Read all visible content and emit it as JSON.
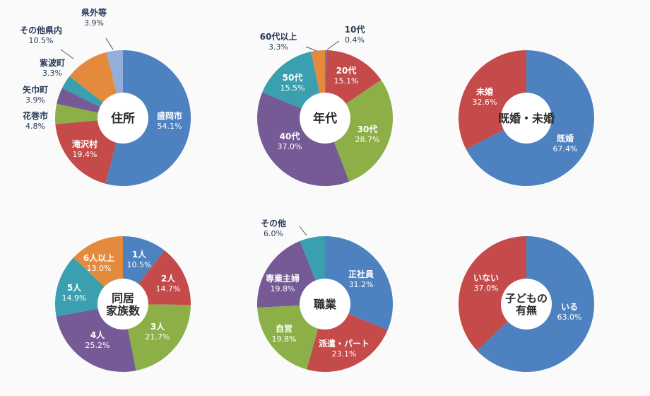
{
  "colors": {
    "blue": "#4d81c0",
    "red": "#c54a4a",
    "green": "#8daf48",
    "purple": "#755a96",
    "teal": "#3a9fae",
    "orange": "#e48a3c",
    "lightblue": "#93aedb",
    "center": "#ffffff",
    "outside_text": "#2a3a5a",
    "inside_text": "#ffffff"
  },
  "chart_data": [
    {
      "type": "pie",
      "title": "住所",
      "slices": [
        {
          "label": "盛岡市",
          "pct_text": "54.1%",
          "value": 54.1,
          "color": "blue"
        },
        {
          "label": "滝沢村",
          "pct_text": "19.4%",
          "value": 19.4,
          "color": "red"
        },
        {
          "label": "花巻市",
          "pct_text": "4.8%",
          "value": 4.8,
          "color": "green"
        },
        {
          "label": "矢巾町",
          "pct_text": "3.9%",
          "value": 3.9,
          "color": "purple"
        },
        {
          "label": "紫波町",
          "pct_text": "3.3%",
          "value": 3.3,
          "color": "teal"
        },
        {
          "label": "その他県内",
          "pct_text": "10.5%",
          "value": 10.5,
          "color": "orange"
        },
        {
          "label": "県外等",
          "pct_text": "3.9%",
          "value": 3.9,
          "color": "lightblue"
        }
      ]
    },
    {
      "type": "pie",
      "title": "年代",
      "slices": [
        {
          "label": "10代",
          "pct_text": "0.4%",
          "value": 0.4,
          "color": "blue"
        },
        {
          "label": "20代",
          "pct_text": "15.1%",
          "value": 15.1,
          "color": "red"
        },
        {
          "label": "30代",
          "pct_text": "28.7%",
          "value": 28.7,
          "color": "green"
        },
        {
          "label": "40代",
          "pct_text": "37.0%",
          "value": 37.0,
          "color": "purple"
        },
        {
          "label": "50代",
          "pct_text": "15.5%",
          "value": 15.5,
          "color": "teal"
        },
        {
          "label": "60代以上",
          "pct_text": "3.3%",
          "value": 3.3,
          "color": "orange"
        }
      ]
    },
    {
      "type": "pie",
      "title": "既婚・未婚",
      "slices": [
        {
          "label": "既婚",
          "pct_text": "67.4%",
          "value": 67.4,
          "color": "blue"
        },
        {
          "label": "未婚",
          "pct_text": "32.6%",
          "value": 32.6,
          "color": "red"
        }
      ]
    },
    {
      "type": "pie",
      "title": "同居\n家族数",
      "slices": [
        {
          "label": "1人",
          "pct_text": "10.5%",
          "value": 10.5,
          "color": "blue"
        },
        {
          "label": "2人",
          "pct_text": "14.7%",
          "value": 14.7,
          "color": "red"
        },
        {
          "label": "3人",
          "pct_text": "21.7%",
          "value": 21.7,
          "color": "green"
        },
        {
          "label": "4人",
          "pct_text": "25.2%",
          "value": 25.2,
          "color": "purple"
        },
        {
          "label": "5人",
          "pct_text": "14.9%",
          "value": 14.9,
          "color": "teal"
        },
        {
          "label": "6人以上",
          "pct_text": "13.0%",
          "value": 13.0,
          "color": "orange"
        }
      ]
    },
    {
      "type": "pie",
      "title": "職業",
      "slices": [
        {
          "label": "正社員",
          "pct_text": "31.2%",
          "value": 31.2,
          "color": "blue"
        },
        {
          "label": "派遣・パート",
          "pct_text": "23.1%",
          "value": 23.1,
          "color": "red"
        },
        {
          "label": "自営",
          "pct_text": "19.8%",
          "value": 19.8,
          "color": "green"
        },
        {
          "label": "専業主婦",
          "pct_text": "19.8%",
          "value": 19.8,
          "color": "purple"
        },
        {
          "label": "その他",
          "pct_text": "6.0%",
          "value": 6.0,
          "color": "teal"
        }
      ]
    },
    {
      "type": "pie",
      "title": "子どもの\n有無",
      "slices": [
        {
          "label": "いる",
          "pct_text": "63.0%",
          "value": 63.0,
          "color": "blue"
        },
        {
          "label": "いない",
          "pct_text": "37.0%",
          "value": 37.0,
          "color": "red"
        }
      ]
    }
  ]
}
